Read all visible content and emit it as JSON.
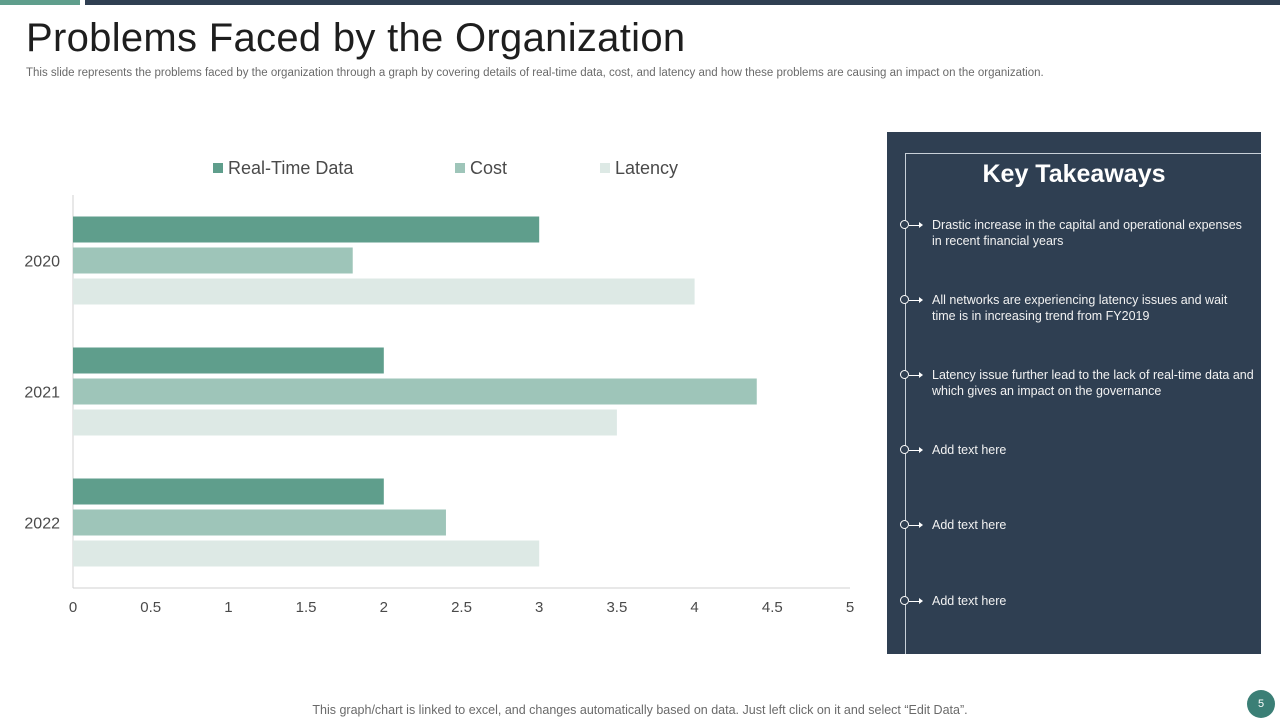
{
  "slide": {
    "title": "Problems Faced by the Organization",
    "subtitle": "This slide represents the problems faced by the organization through a graph by covering details of real-time data, cost, and latency and how these problems are causing an impact on the organization.",
    "footer": "This graph/chart is linked to excel, and changes automatically based on data. Just left click on it and select “Edit Data”.",
    "page_number": "5"
  },
  "colors": {
    "real_time_data": "#5f9e8c",
    "cost": "#9ec5b9",
    "latency": "#dde9e5",
    "panel": "#2f3f52",
    "accent": "#3b7f76"
  },
  "chart_data": {
    "type": "bar",
    "orientation": "horizontal",
    "categories": [
      "2020",
      "2021",
      "2022"
    ],
    "series": [
      {
        "name": "Real-Time Data",
        "values": [
          3,
          2,
          2
        ]
      },
      {
        "name": "Cost",
        "values": [
          1.8,
          4.4,
          2.4
        ]
      },
      {
        "name": "Latency",
        "values": [
          4,
          3.5,
          3
        ]
      }
    ],
    "xlim": [
      0,
      5
    ],
    "x_ticks": [
      "0",
      "0.5",
      "1",
      "1.5",
      "2",
      "2.5",
      "3",
      "3.5",
      "4",
      "4.5",
      "5"
    ],
    "xlabel": "",
    "ylabel": "",
    "legend_position": "top",
    "grid": false
  },
  "takeaways": {
    "title": "Key Takeaways",
    "items": [
      "Drastic increase in the capital and operational expenses in recent financial years",
      "All networks are experiencing latency issues and wait time is in increasing trend from FY2019",
      "Latency issue further lead to the lack of real-time data and which gives an impact on the governance",
      "Add text here",
      "Add text here",
      "Add text here"
    ]
  }
}
